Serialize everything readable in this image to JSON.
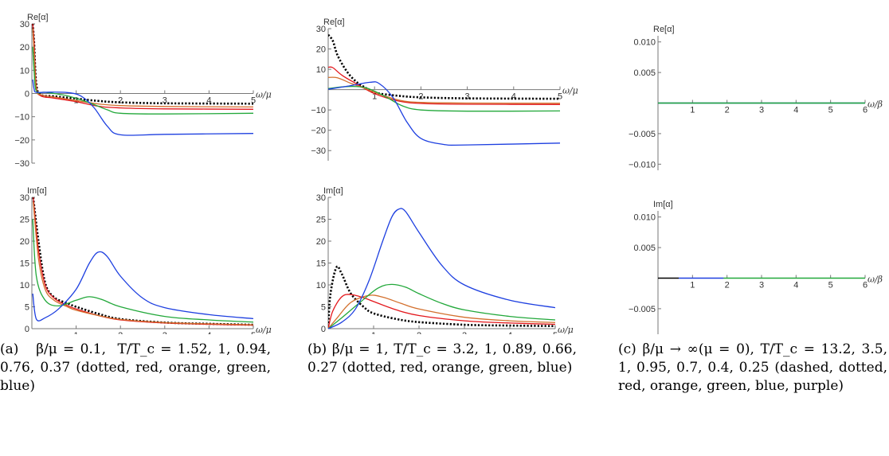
{
  "colors": {
    "black": "#000000",
    "red": "#e3161b",
    "orange": "#d3702e",
    "green": "#22a83a",
    "blue": "#1d3fe0",
    "purple": "#8a2bd0"
  },
  "captions": [
    "(a)   β/μ = 0.1,  T/T_c = 1.52, 1, 0.94, 0.76, 0.37 (dotted, red, orange, green, blue)",
    "(b) β/μ = 1, T/T_c = 3.2, 1, 0.89, 0.66, 0.27 (dotted, red, orange, green, blue)",
    "(c) β/μ → ∞(μ = 0), T/T_c = 13.2, 3.5, 1, 0.95, 0.7, 0.4, 0.25 (dashed, dotted, red, orange, green, blue, purple)"
  ],
  "chart_data": [
    {
      "id": "a-re",
      "type": "line",
      "ylabel": "Re[α]",
      "xlabel": "ω/μ",
      "xlim": [
        0,
        5
      ],
      "ylim": [
        -30,
        30
      ],
      "xticks": [
        1,
        2,
        3,
        4,
        5
      ],
      "yticks": [
        -30,
        -20,
        -10,
        0,
        10,
        20,
        30
      ],
      "series": [
        {
          "color": "black",
          "style": "dotted",
          "points": [
            [
              0.02,
              30
            ],
            [
              0.05,
              22
            ],
            [
              0.1,
              4
            ],
            [
              0.2,
              -0.5
            ],
            [
              0.5,
              -1.2
            ],
            [
              1,
              -2.2
            ],
            [
              1.5,
              -3.2
            ],
            [
              2,
              -3.8
            ],
            [
              3,
              -4.2
            ],
            [
              5,
              -4.4
            ]
          ]
        },
        {
          "color": "red",
          "points": [
            [
              0.02,
              30
            ],
            [
              0.05,
              22
            ],
            [
              0.1,
              3
            ],
            [
              0.2,
              -1
            ],
            [
              0.5,
              -2
            ],
            [
              1,
              -3.5
            ],
            [
              1.5,
              -5.5
            ],
            [
              2,
              -6.2
            ],
            [
              3,
              -6.6
            ],
            [
              5,
              -6.8
            ]
          ]
        },
        {
          "color": "orange",
          "points": [
            [
              0.02,
              28
            ],
            [
              0.05,
              18
            ],
            [
              0.1,
              2
            ],
            [
              0.2,
              -0.5
            ],
            [
              0.5,
              -1.5
            ],
            [
              1,
              -3
            ],
            [
              1.5,
              -4.5
            ],
            [
              2,
              -5.2
            ],
            [
              3,
              -5.6
            ],
            [
              5,
              -5.8
            ]
          ]
        },
        {
          "color": "green",
          "points": [
            [
              0.02,
              20
            ],
            [
              0.05,
              10
            ],
            [
              0.1,
              1
            ],
            [
              0.3,
              0.5
            ],
            [
              0.8,
              -1
            ],
            [
              1.3,
              -4
            ],
            [
              1.7,
              -7
            ],
            [
              2,
              -8.5
            ],
            [
              3,
              -8.8
            ],
            [
              5,
              -8.5
            ]
          ]
        },
        {
          "color": "blue",
          "points": [
            [
              0.02,
              6
            ],
            [
              0.05,
              2
            ],
            [
              0.1,
              0.5
            ],
            [
              0.4,
              0.6
            ],
            [
              0.8,
              0.4
            ],
            [
              1.1,
              -1
            ],
            [
              1.4,
              -6
            ],
            [
              1.7,
              -14
            ],
            [
              2,
              -17.8
            ],
            [
              3,
              -17.6
            ],
            [
              5,
              -17.2
            ]
          ]
        }
      ]
    },
    {
      "id": "a-im",
      "type": "line",
      "ylabel": "Im[α]",
      "xlabel": "ω/μ",
      "xlim": [
        0,
        5
      ],
      "ylim": [
        0,
        30
      ],
      "xticks": [
        1,
        2,
        3,
        4,
        5
      ],
      "yticks": [
        0,
        5,
        10,
        15,
        20,
        25,
        30
      ],
      "series": [
        {
          "color": "black",
          "style": "dotted",
          "points": [
            [
              0.03,
              30
            ],
            [
              0.15,
              20
            ],
            [
              0.3,
              10.5
            ],
            [
              0.5,
              7.2
            ],
            [
              0.8,
              5.8
            ],
            [
              1,
              5
            ],
            [
              1.5,
              3.4
            ],
            [
              2,
              2.2
            ],
            [
              3,
              1.4
            ],
            [
              4,
              1.1
            ],
            [
              5,
              0.9
            ]
          ]
        },
        {
          "color": "red",
          "points": [
            [
              0.03,
              30
            ],
            [
              0.15,
              18
            ],
            [
              0.3,
              10
            ],
            [
              0.5,
              7
            ],
            [
              0.8,
              5.3
            ],
            [
              1,
              4.5
            ],
            [
              1.5,
              3
            ],
            [
              2,
              2
            ],
            [
              3,
              1.3
            ],
            [
              4,
              1
            ],
            [
              5,
              0.8
            ]
          ]
        },
        {
          "color": "orange",
          "points": [
            [
              0.03,
              29
            ],
            [
              0.15,
              16
            ],
            [
              0.3,
              9
            ],
            [
              0.5,
              6.5
            ],
            [
              0.8,
              5
            ],
            [
              1,
              4.2
            ],
            [
              1.5,
              3
            ],
            [
              2,
              2.1
            ],
            [
              3,
              1.4
            ],
            [
              4,
              1.1
            ],
            [
              5,
              0.9
            ]
          ]
        },
        {
          "color": "green",
          "points": [
            [
              0.02,
              25
            ],
            [
              0.1,
              12
            ],
            [
              0.3,
              6.5
            ],
            [
              0.6,
              5.2
            ],
            [
              1,
              6.5
            ],
            [
              1.3,
              7.3
            ],
            [
              1.6,
              6.6
            ],
            [
              2,
              5
            ],
            [
              3,
              2.8
            ],
            [
              4,
              2
            ],
            [
              5,
              1.5
            ]
          ]
        },
        {
          "color": "blue",
          "points": [
            [
              0.02,
              8
            ],
            [
              0.1,
              2.2
            ],
            [
              0.3,
              2.5
            ],
            [
              0.6,
              4.5
            ],
            [
              1,
              9
            ],
            [
              1.3,
              15
            ],
            [
              1.5,
              17.5
            ],
            [
              1.7,
              16.5
            ],
            [
              2,
              12
            ],
            [
              2.5,
              7
            ],
            [
              3,
              4.8
            ],
            [
              4,
              3.2
            ],
            [
              5,
              2.3
            ]
          ]
        }
      ]
    },
    {
      "id": "b-re",
      "type": "line",
      "ylabel": "Re[α]",
      "xlabel": "ω/μ",
      "xlim": [
        0,
        5
      ],
      "ylim": [
        -35,
        30
      ],
      "xticks": [
        1,
        2,
        3,
        4,
        5
      ],
      "yticks": [
        -30,
        -20,
        -10,
        10,
        20,
        30
      ],
      "series": [
        {
          "color": "black",
          "style": "dotted",
          "points": [
            [
              0,
              27
            ],
            [
              0.1,
              24
            ],
            [
              0.2,
              17
            ],
            [
              0.4,
              9
            ],
            [
              0.6,
              4
            ],
            [
              0.8,
              1
            ],
            [
              1,
              -1.5
            ],
            [
              1.5,
              -3
            ],
            [
              2,
              -3.8
            ],
            [
              3,
              -4.3
            ],
            [
              5,
              -4.5
            ]
          ]
        },
        {
          "color": "red",
          "points": [
            [
              0,
              11
            ],
            [
              0.1,
              10.8
            ],
            [
              0.3,
              7
            ],
            [
              0.6,
              3
            ],
            [
              1,
              -2
            ],
            [
              1.5,
              -5.5
            ],
            [
              2,
              -6.8
            ],
            [
              3,
              -7.2
            ],
            [
              5,
              -7.3
            ]
          ]
        },
        {
          "color": "orange",
          "points": [
            [
              0,
              6
            ],
            [
              0.2,
              5.8
            ],
            [
              0.5,
              3
            ],
            [
              0.8,
              0.5
            ],
            [
              1.2,
              -3
            ],
            [
              1.6,
              -5.5
            ],
            [
              2,
              -6.3
            ],
            [
              3,
              -6.6
            ],
            [
              5,
              -6.7
            ]
          ]
        },
        {
          "color": "green",
          "points": [
            [
              0,
              0.5
            ],
            [
              0.4,
              1.5
            ],
            [
              0.8,
              1
            ],
            [
              1.2,
              -3
            ],
            [
              1.6,
              -8
            ],
            [
              2,
              -10
            ],
            [
              3,
              -10.6
            ],
            [
              5,
              -10.5
            ]
          ]
        },
        {
          "color": "blue",
          "points": [
            [
              0,
              0.2
            ],
            [
              0.5,
              2
            ],
            [
              0.9,
              3.6
            ],
            [
              1.1,
              3
            ],
            [
              1.4,
              -4
            ],
            [
              1.7,
              -16
            ],
            [
              2,
              -24
            ],
            [
              2.5,
              -27
            ],
            [
              3,
              -27.2
            ],
            [
              5,
              -26.3
            ]
          ]
        }
      ]
    },
    {
      "id": "b-im",
      "type": "line",
      "ylabel": "Im[α]",
      "xlabel": "ω/μ",
      "xlim": [
        0,
        5
      ],
      "ylim": [
        0,
        30
      ],
      "xticks": [
        1,
        2,
        3,
        4,
        5
      ],
      "yticks": [
        0,
        5,
        10,
        15,
        20,
        25,
        30
      ],
      "series": [
        {
          "color": "black",
          "style": "dotted",
          "points": [
            [
              0,
              0.5
            ],
            [
              0.05,
              8
            ],
            [
              0.18,
              14
            ],
            [
              0.3,
              12.5
            ],
            [
              0.5,
              8
            ],
            [
              0.8,
              4.8
            ],
            [
              1,
              3.5
            ],
            [
              1.5,
              2.2
            ],
            [
              2,
              1.5
            ],
            [
              3,
              0.9
            ],
            [
              4,
              0.7
            ],
            [
              5,
              0.6
            ]
          ]
        },
        {
          "color": "red",
          "points": [
            [
              0,
              0
            ],
            [
              0.1,
              4
            ],
            [
              0.3,
              7.3
            ],
            [
              0.5,
              7.8
            ],
            [
              0.8,
              7
            ],
            [
              1,
              6.2
            ],
            [
              1.5,
              4.3
            ],
            [
              2,
              3
            ],
            [
              3,
              1.8
            ],
            [
              4,
              1.3
            ],
            [
              5,
              1
            ]
          ]
        },
        {
          "color": "orange",
          "points": [
            [
              0,
              0
            ],
            [
              0.2,
              2.5
            ],
            [
              0.5,
              6
            ],
            [
              0.9,
              7.6
            ],
            [
              1.2,
              7.2
            ],
            [
              1.6,
              5.8
            ],
            [
              2,
              4.5
            ],
            [
              3,
              2.6
            ],
            [
              4,
              1.8
            ],
            [
              5,
              1.4
            ]
          ]
        },
        {
          "color": "green",
          "points": [
            [
              0,
              0
            ],
            [
              0.3,
              2.5
            ],
            [
              0.7,
              6
            ],
            [
              1.1,
              9.3
            ],
            [
              1.4,
              10.1
            ],
            [
              1.7,
              9.5
            ],
            [
              2,
              8
            ],
            [
              2.5,
              5.8
            ],
            [
              3,
              4.3
            ],
            [
              4,
              2.8
            ],
            [
              5,
              2
            ]
          ]
        },
        {
          "color": "blue",
          "points": [
            [
              0,
              0
            ],
            [
              0.3,
              1.5
            ],
            [
              0.6,
              4.5
            ],
            [
              0.9,
              11
            ],
            [
              1.2,
              20
            ],
            [
              1.4,
              25.5
            ],
            [
              1.55,
              27.3
            ],
            [
              1.7,
              26.8
            ],
            [
              2,
              22
            ],
            [
              2.5,
              14.5
            ],
            [
              3,
              10
            ],
            [
              4,
              6.5
            ],
            [
              5,
              4.8
            ]
          ]
        }
      ]
    },
    {
      "id": "c-re",
      "type": "line",
      "ylabel": "Re[α]",
      "xlabel": "ω/β",
      "xlim": [
        0,
        6
      ],
      "ylim": [
        -0.011,
        0.011
      ],
      "xticks": [
        1,
        2,
        3,
        4,
        5,
        6
      ],
      "yticks": [
        -0.01,
        -0.005,
        0.005,
        0.01
      ],
      "ytick_labels": [
        "−0.010",
        "−0.005",
        "0.005",
        "0.010"
      ],
      "series": [
        {
          "color": "blue",
          "points": [
            [
              0,
              0
            ],
            [
              6,
              0
            ]
          ]
        },
        {
          "color": "green",
          "points": [
            [
              0,
              0
            ],
            [
              6,
              0
            ]
          ]
        }
      ]
    },
    {
      "id": "c-im",
      "type": "line",
      "ylabel": "Im[α]",
      "xlabel": "ω/β",
      "xlim": [
        0,
        6
      ],
      "ylim": [
        -0.011,
        0.011
      ],
      "xticks": [
        1,
        2,
        3,
        4,
        5,
        6
      ],
      "yticks": [
        -0.01,
        -0.005,
        0.005,
        0.01
      ],
      "ytick_labels": [
        "−0.010",
        "−0.005",
        "0.005",
        "0.010"
      ],
      "series": [
        {
          "color": "black",
          "points": [
            [
              0,
              0
            ],
            [
              0.6,
              0
            ]
          ]
        },
        {
          "color": "blue",
          "points": [
            [
              0.6,
              0
            ],
            [
              1.9,
              0
            ]
          ]
        },
        {
          "color": "green",
          "points": [
            [
              1.9,
              0
            ],
            [
              6,
              0
            ]
          ]
        }
      ]
    }
  ]
}
